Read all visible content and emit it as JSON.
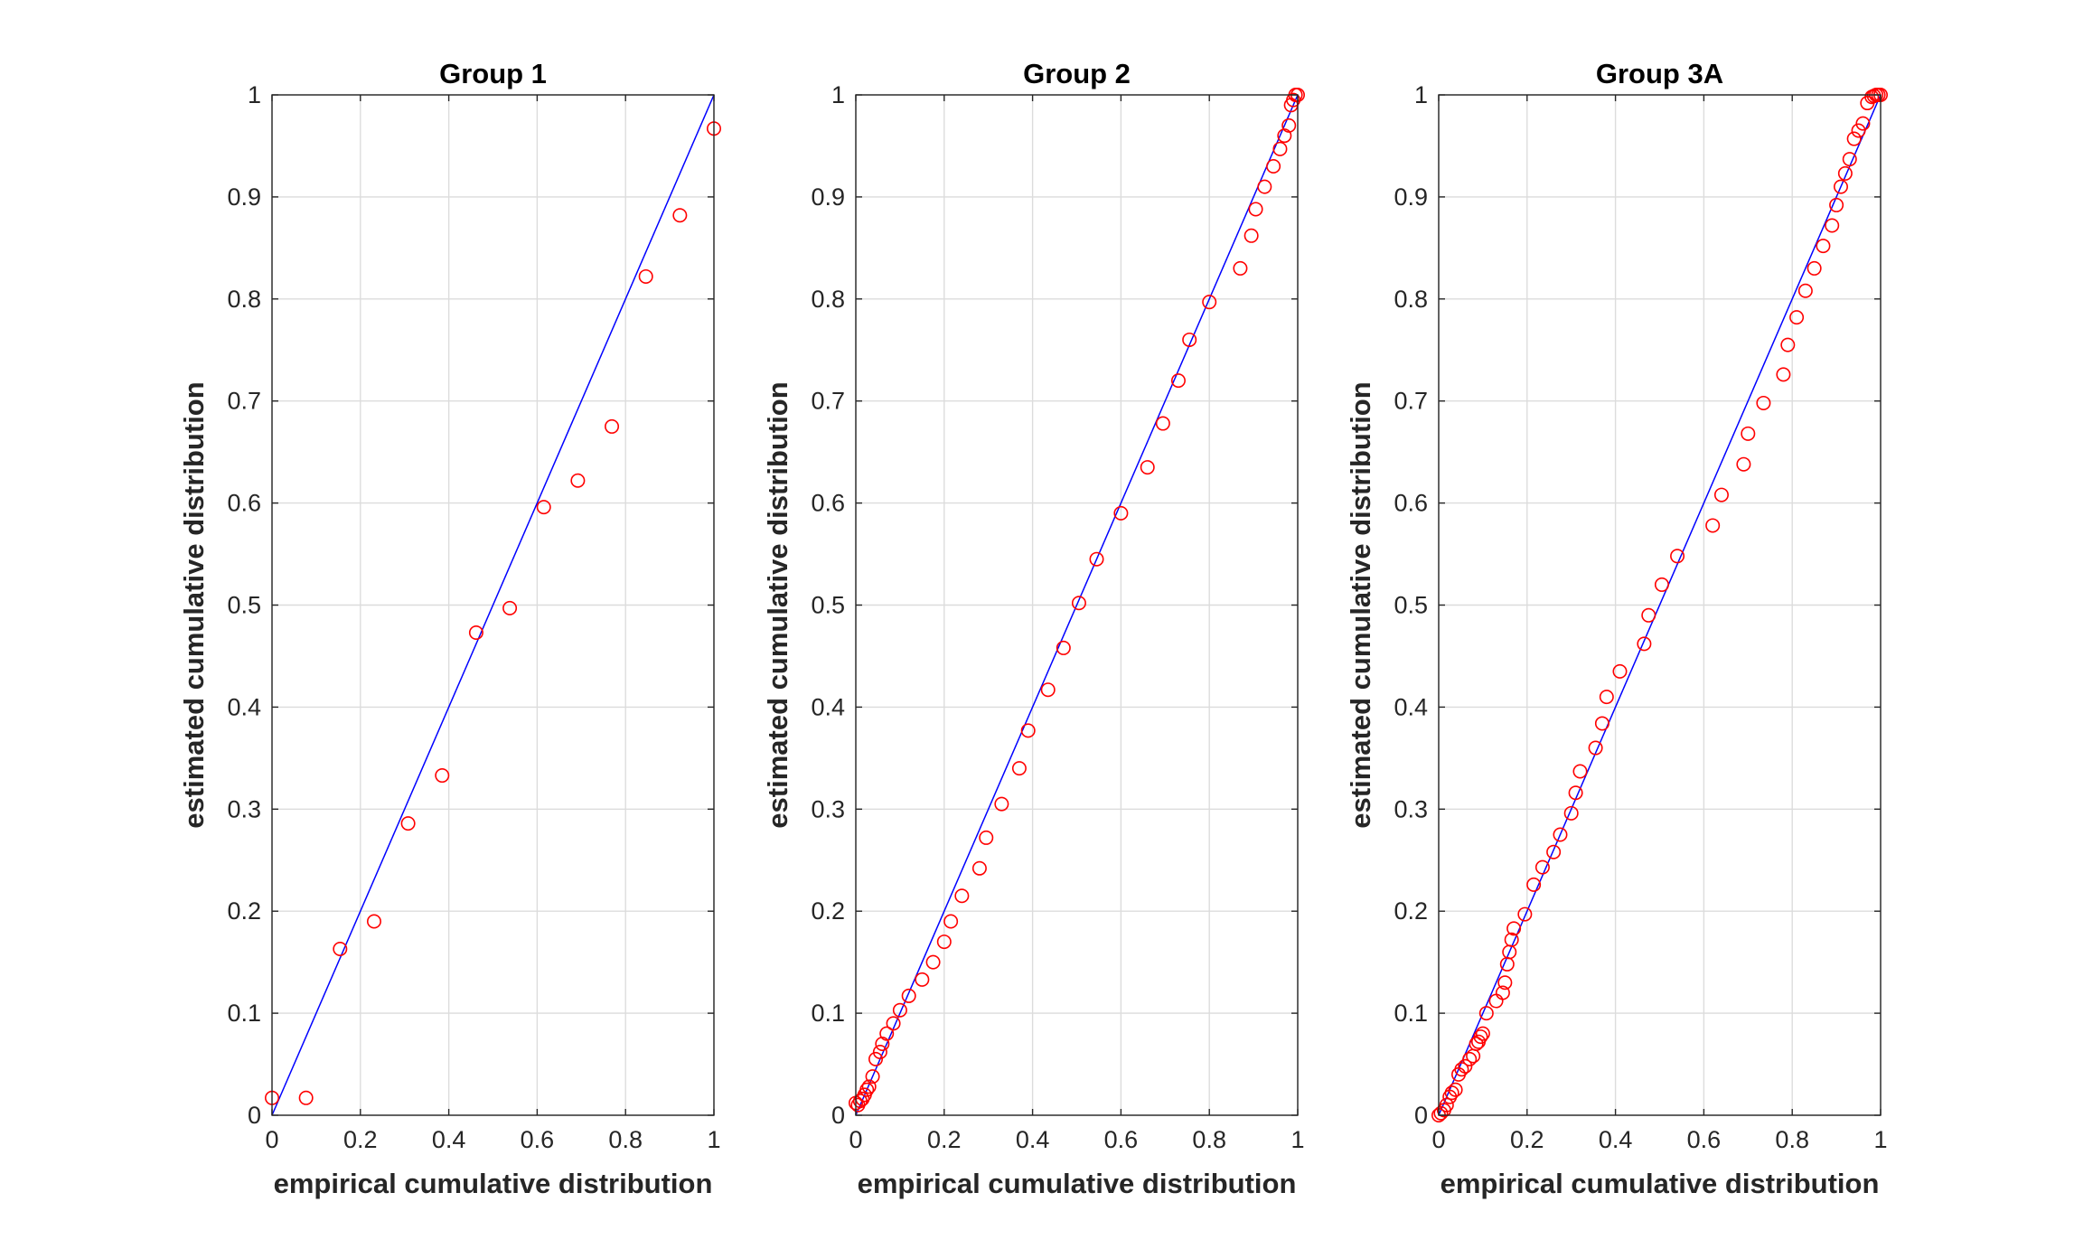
{
  "chart_data": [
    {
      "type": "scatter",
      "title": "Group 1",
      "xlabel": "empirical cumulative distribution",
      "ylabel": "estimated cumulative distribution",
      "xlim": [
        0,
        1
      ],
      "ylim": [
        0,
        1
      ],
      "grid": true,
      "xticks": [
        "0",
        "0.2",
        "0.4",
        "0.6",
        "0.8",
        "1"
      ],
      "yticks": [
        "0",
        "0.1",
        "0.2",
        "0.3",
        "0.4",
        "0.5",
        "0.6",
        "0.7",
        "0.8",
        "0.9",
        "1"
      ],
      "reference_line": {
        "x": [
          0,
          1
        ],
        "y": [
          0,
          1
        ],
        "color": "#0000ff"
      },
      "marker_color": "#ff0000",
      "x": [
        0.0,
        0.077,
        0.154,
        0.231,
        0.308,
        0.385,
        0.462,
        0.538,
        0.615,
        0.692,
        0.769,
        0.846,
        0.923,
        1.0
      ],
      "y": [
        0.017,
        0.017,
        0.163,
        0.19,
        0.286,
        0.333,
        0.473,
        0.497,
        0.596,
        0.622,
        0.675,
        0.822,
        0.882,
        0.967
      ]
    },
    {
      "type": "scatter",
      "title": "Group 2",
      "xlabel": "empirical cumulative distribution",
      "ylabel": "estimated cumulative distribution",
      "xlim": [
        0,
        1
      ],
      "ylim": [
        0,
        1
      ],
      "grid": true,
      "xticks": [
        "0",
        "0.2",
        "0.4",
        "0.6",
        "0.8",
        "1"
      ],
      "yticks": [
        "0",
        "0.1",
        "0.2",
        "0.3",
        "0.4",
        "0.5",
        "0.6",
        "0.7",
        "0.8",
        "0.9",
        "1"
      ],
      "reference_line": {
        "x": [
          0,
          1
        ],
        "y": [
          0,
          1
        ],
        "color": "#0000ff"
      },
      "marker_color": "#ff0000",
      "x": [
        0.0,
        0.005,
        0.01,
        0.015,
        0.02,
        0.025,
        0.03,
        0.038,
        0.045,
        0.055,
        0.06,
        0.07,
        0.085,
        0.1,
        0.12,
        0.15,
        0.175,
        0.2,
        0.215,
        0.24,
        0.28,
        0.295,
        0.33,
        0.37,
        0.39,
        0.435,
        0.47,
        0.505,
        0.545,
        0.6,
        0.66,
        0.695,
        0.73,
        0.755,
        0.8,
        0.87,
        0.895,
        0.905,
        0.925,
        0.945,
        0.96,
        0.97,
        0.98,
        0.985,
        0.99,
        0.995,
        1.0
      ],
      "y": [
        0.012,
        0.01,
        0.014,
        0.016,
        0.02,
        0.025,
        0.028,
        0.038,
        0.055,
        0.062,
        0.07,
        0.08,
        0.09,
        0.103,
        0.117,
        0.133,
        0.15,
        0.17,
        0.19,
        0.215,
        0.242,
        0.272,
        0.305,
        0.34,
        0.377,
        0.417,
        0.458,
        0.502,
        0.545,
        0.59,
        0.635,
        0.678,
        0.72,
        0.76,
        0.797,
        0.83,
        0.862,
        0.888,
        0.91,
        0.93,
        0.947,
        0.96,
        0.97,
        0.99,
        0.995,
        1.0,
        1.0
      ]
    },
    {
      "type": "scatter",
      "title": "Group 3A",
      "xlabel": "empirical cumulative distribution",
      "ylabel": "estimated cumulative distribution",
      "xlim": [
        0,
        1
      ],
      "ylim": [
        0,
        1
      ],
      "grid": true,
      "xticks": [
        "0",
        "0.2",
        "0.4",
        "0.6",
        "0.8",
        "1"
      ],
      "yticks": [
        "0",
        "0.1",
        "0.2",
        "0.3",
        "0.4",
        "0.5",
        "0.6",
        "0.7",
        "0.8",
        "0.9",
        "1"
      ],
      "reference_line": {
        "x": [
          0,
          1
        ],
        "y": [
          0,
          1
        ],
        "color": "#0000ff"
      },
      "marker_color": "#ff0000",
      "x": [
        0.0,
        0.005,
        0.012,
        0.018,
        0.025,
        0.03,
        0.038,
        0.045,
        0.052,
        0.06,
        0.07,
        0.078,
        0.085,
        0.09,
        0.095,
        0.1,
        0.108,
        0.13,
        0.145,
        0.15,
        0.155,
        0.16,
        0.165,
        0.17,
        0.195,
        0.215,
        0.235,
        0.26,
        0.275,
        0.3,
        0.31,
        0.32,
        0.355,
        0.37,
        0.38,
        0.41,
        0.465,
        0.475,
        0.505,
        0.54,
        0.62,
        0.64,
        0.69,
        0.7,
        0.735,
        0.78,
        0.79,
        0.81,
        0.83,
        0.85,
        0.87,
        0.89,
        0.9,
        0.91,
        0.92,
        0.93,
        0.94,
        0.95,
        0.96,
        0.97,
        0.98,
        0.985,
        0.99,
        0.995,
        1.0
      ],
      "y": [
        0.0,
        0.002,
        0.005,
        0.01,
        0.018,
        0.022,
        0.025,
        0.04,
        0.045,
        0.048,
        0.055,
        0.058,
        0.07,
        0.072,
        0.077,
        0.08,
        0.1,
        0.112,
        0.12,
        0.13,
        0.148,
        0.16,
        0.172,
        0.183,
        0.197,
        0.226,
        0.243,
        0.258,
        0.275,
        0.296,
        0.316,
        0.337,
        0.36,
        0.384,
        0.41,
        0.435,
        0.462,
        0.49,
        0.52,
        0.548,
        0.578,
        0.608,
        0.638,
        0.668,
        0.698,
        0.726,
        0.755,
        0.782,
        0.808,
        0.83,
        0.852,
        0.872,
        0.892,
        0.91,
        0.923,
        0.937,
        0.957,
        0.965,
        0.972,
        0.992,
        0.998,
        0.999,
        1.0,
        1.0,
        1.0
      ]
    }
  ]
}
